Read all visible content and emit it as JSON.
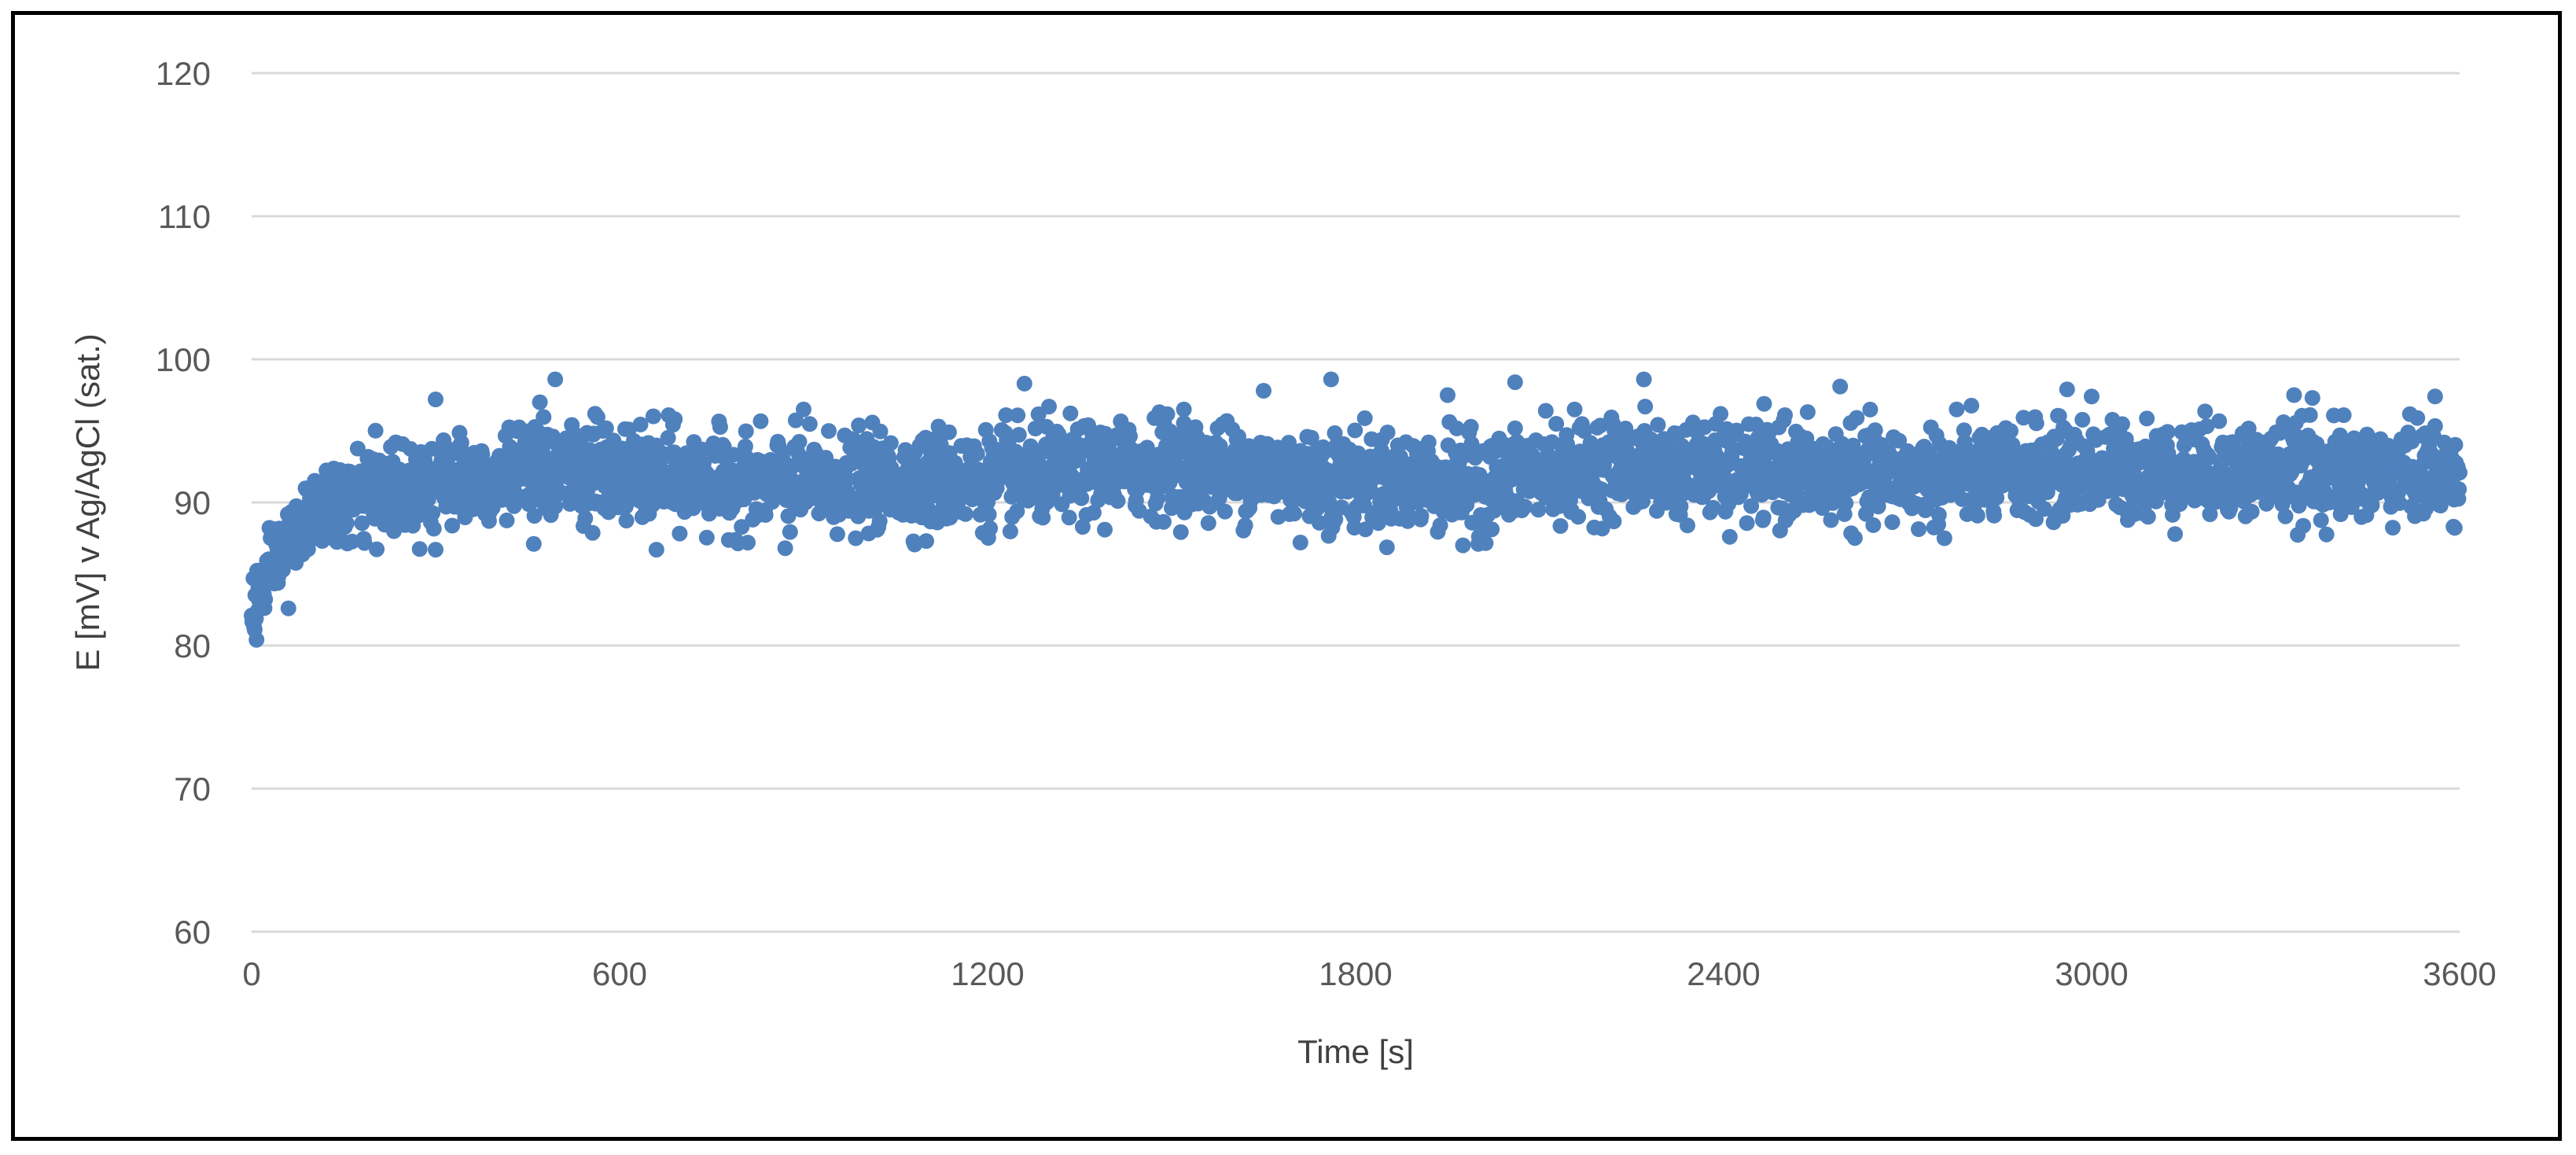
{
  "chart_data": {
    "type": "scatter",
    "title": "",
    "xlabel": "Time  [s]",
    "ylabel": "E [mV] v Ag/AgCl (sat.)",
    "xlim": [
      0,
      3600
    ],
    "ylim": [
      60,
      120
    ],
    "xticks": [
      0,
      600,
      1200,
      1800,
      2400,
      3000,
      3600
    ],
    "yticks": [
      60,
      70,
      80,
      90,
      100,
      110,
      120
    ],
    "x_tick_labels": [
      "0",
      "600",
      "1200",
      "1800",
      "2400",
      "3000",
      "3600"
    ],
    "y_tick_labels": [
      "60",
      "70",
      "80",
      "90",
      "100",
      "110",
      "120"
    ],
    "grid": "horizontal",
    "legend": "none",
    "marker_color": "#4F81BD",
    "series": [
      {
        "sampling_interval_s": 1,
        "x_start": 0,
        "x_end": 3600,
        "trend": [
          [
            0,
            82.5
          ],
          [
            30,
            85
          ],
          [
            60,
            87.5
          ],
          [
            100,
            89
          ],
          [
            150,
            90
          ],
          [
            200,
            90.8
          ],
          [
            300,
            91.5
          ],
          [
            500,
            92.3
          ],
          [
            650,
            91.8
          ],
          [
            800,
            91.3
          ],
          [
            1000,
            91.4
          ],
          [
            1200,
            91.6
          ],
          [
            1500,
            92.6
          ],
          [
            1800,
            91.6
          ],
          [
            2000,
            91.3
          ],
          [
            2200,
            92.6
          ],
          [
            2400,
            92.2
          ],
          [
            2700,
            91.8
          ],
          [
            3000,
            92.3
          ],
          [
            3300,
            92.2
          ],
          [
            3600,
            92.0
          ]
        ],
        "spread_mv": 1.6,
        "outliers": [
          [
            8,
            80.4
          ],
          [
            60,
            82.6
          ],
          [
            300,
            86.7
          ],
          [
            300,
            97.2
          ],
          [
            460,
            87.1
          ],
          [
            470,
            97.0
          ],
          [
            495,
            98.6
          ],
          [
            560,
            96.2
          ],
          [
            660,
            86.7
          ],
          [
            680,
            96.1
          ],
          [
            870,
            86.8
          ],
          [
            900,
            96.5
          ],
          [
            1100,
            87.3
          ],
          [
            1120,
            95.3
          ],
          [
            1230,
            96.1
          ],
          [
            1260,
            98.3
          ],
          [
            1300,
            96.7
          ],
          [
            1480,
            96.3
          ],
          [
            1520,
            96.5
          ],
          [
            1650,
            97.8
          ],
          [
            1710,
            87.2
          ],
          [
            1760,
            98.6
          ],
          [
            1950,
            97.5
          ],
          [
            1975,
            87.0
          ],
          [
            2000,
            87.1
          ],
          [
            2060,
            98.4
          ],
          [
            2110,
            96.4
          ],
          [
            2270,
            98.6
          ],
          [
            2410,
            87.6
          ],
          [
            2500,
            96.1
          ],
          [
            2590,
            98.1
          ],
          [
            2760,
            87.5
          ],
          [
            2780,
            96.5
          ],
          [
            2960,
            97.9
          ],
          [
            3000,
            97.4
          ],
          [
            3330,
            97.5
          ],
          [
            3360,
            97.3
          ],
          [
            3560,
            97.4
          ],
          [
            3590,
            88.3
          ]
        ]
      }
    ]
  }
}
